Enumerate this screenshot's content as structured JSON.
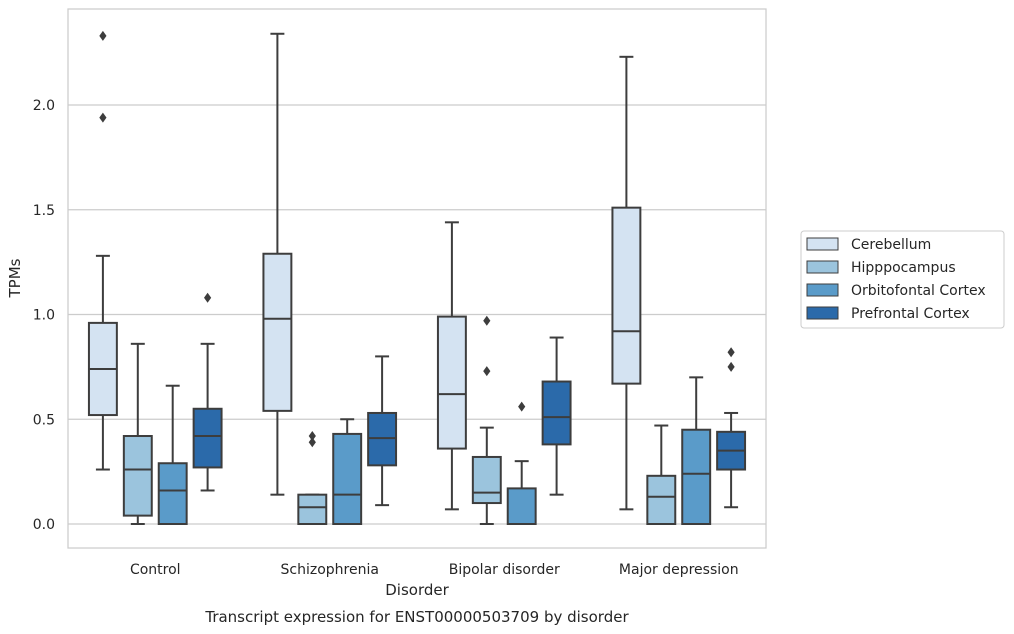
{
  "chart_data": {
    "type": "box",
    "title": "",
    "xlabel": "Disorder",
    "ylabel": "TPMs",
    "caption": "Transcript expression for ENST00000503709 by disorder",
    "ylim": [
      -0.11,
      2.47
    ],
    "yticks": [
      0.0,
      0.5,
      1.0,
      1.5,
      2.0
    ],
    "ytick_labels": [
      "0.0",
      "0.5",
      "1.0",
      "1.5",
      "2.0"
    ],
    "grid": "horizontal",
    "legend_position": "right",
    "categories": [
      "Control",
      "Schizophrenia",
      "Bipolar disorder",
      "Major depression"
    ],
    "series": [
      {
        "name": "Cerebellum",
        "color": "#d4e3f2",
        "boxes": [
          {
            "whislo": 0.26,
            "q1": 0.52,
            "med": 0.74,
            "q3": 0.96,
            "whishi": 1.28,
            "fliers": [
              1.94,
              2.33
            ]
          },
          {
            "whislo": 0.14,
            "q1": 0.54,
            "med": 0.98,
            "q3": 1.29,
            "whishi": 2.34,
            "fliers": []
          },
          {
            "whislo": 0.07,
            "q1": 0.36,
            "med": 0.62,
            "q3": 0.99,
            "whishi": 1.44,
            "fliers": []
          },
          {
            "whislo": 0.07,
            "q1": 0.67,
            "med": 0.92,
            "q3": 1.51,
            "whishi": 2.23,
            "fliers": []
          }
        ]
      },
      {
        "name": "Hipppocampus",
        "color": "#9bc4dd",
        "boxes": [
          {
            "whislo": 0.0,
            "q1": 0.04,
            "med": 0.26,
            "q3": 0.42,
            "whishi": 0.86,
            "fliers": []
          },
          {
            "whislo": 0.0,
            "q1": 0.0,
            "med": 0.08,
            "q3": 0.14,
            "whishi": 0.14,
            "fliers": [
              0.39,
              0.42
            ]
          },
          {
            "whislo": 0.0,
            "q1": 0.1,
            "med": 0.15,
            "q3": 0.32,
            "whishi": 0.46,
            "fliers": [
              0.73,
              0.97
            ]
          },
          {
            "whislo": 0.0,
            "q1": 0.0,
            "med": 0.13,
            "q3": 0.23,
            "whishi": 0.47,
            "fliers": []
          }
        ]
      },
      {
        "name": "Orbitofontal Cortex",
        "color": "#5a9bc9",
        "boxes": [
          {
            "whislo": 0.0,
            "q1": 0.0,
            "med": 0.16,
            "q3": 0.29,
            "whishi": 0.66,
            "fliers": []
          },
          {
            "whislo": 0.0,
            "q1": 0.0,
            "med": 0.14,
            "q3": 0.43,
            "whishi": 0.5,
            "fliers": []
          },
          {
            "whislo": 0.0,
            "q1": 0.0,
            "med": 0.0,
            "q3": 0.17,
            "whishi": 0.3,
            "fliers": [
              0.56
            ]
          },
          {
            "whislo": 0.0,
            "q1": 0.0,
            "med": 0.24,
            "q3": 0.45,
            "whishi": 0.7,
            "fliers": []
          }
        ]
      },
      {
        "name": "Prefrontal Cortex",
        "color": "#2b6aaa",
        "boxes": [
          {
            "whislo": 0.16,
            "q1": 0.27,
            "med": 0.42,
            "q3": 0.55,
            "whishi": 0.86,
            "fliers": [
              1.08
            ]
          },
          {
            "whislo": 0.09,
            "q1": 0.28,
            "med": 0.41,
            "q3": 0.53,
            "whishi": 0.8,
            "fliers": []
          },
          {
            "whislo": 0.14,
            "q1": 0.38,
            "med": 0.51,
            "q3": 0.68,
            "whishi": 0.89,
            "fliers": []
          },
          {
            "whislo": 0.08,
            "q1": 0.26,
            "med": 0.35,
            "q3": 0.44,
            "whishi": 0.53,
            "fliers": [
              0.75,
              0.82
            ]
          }
        ]
      }
    ]
  }
}
